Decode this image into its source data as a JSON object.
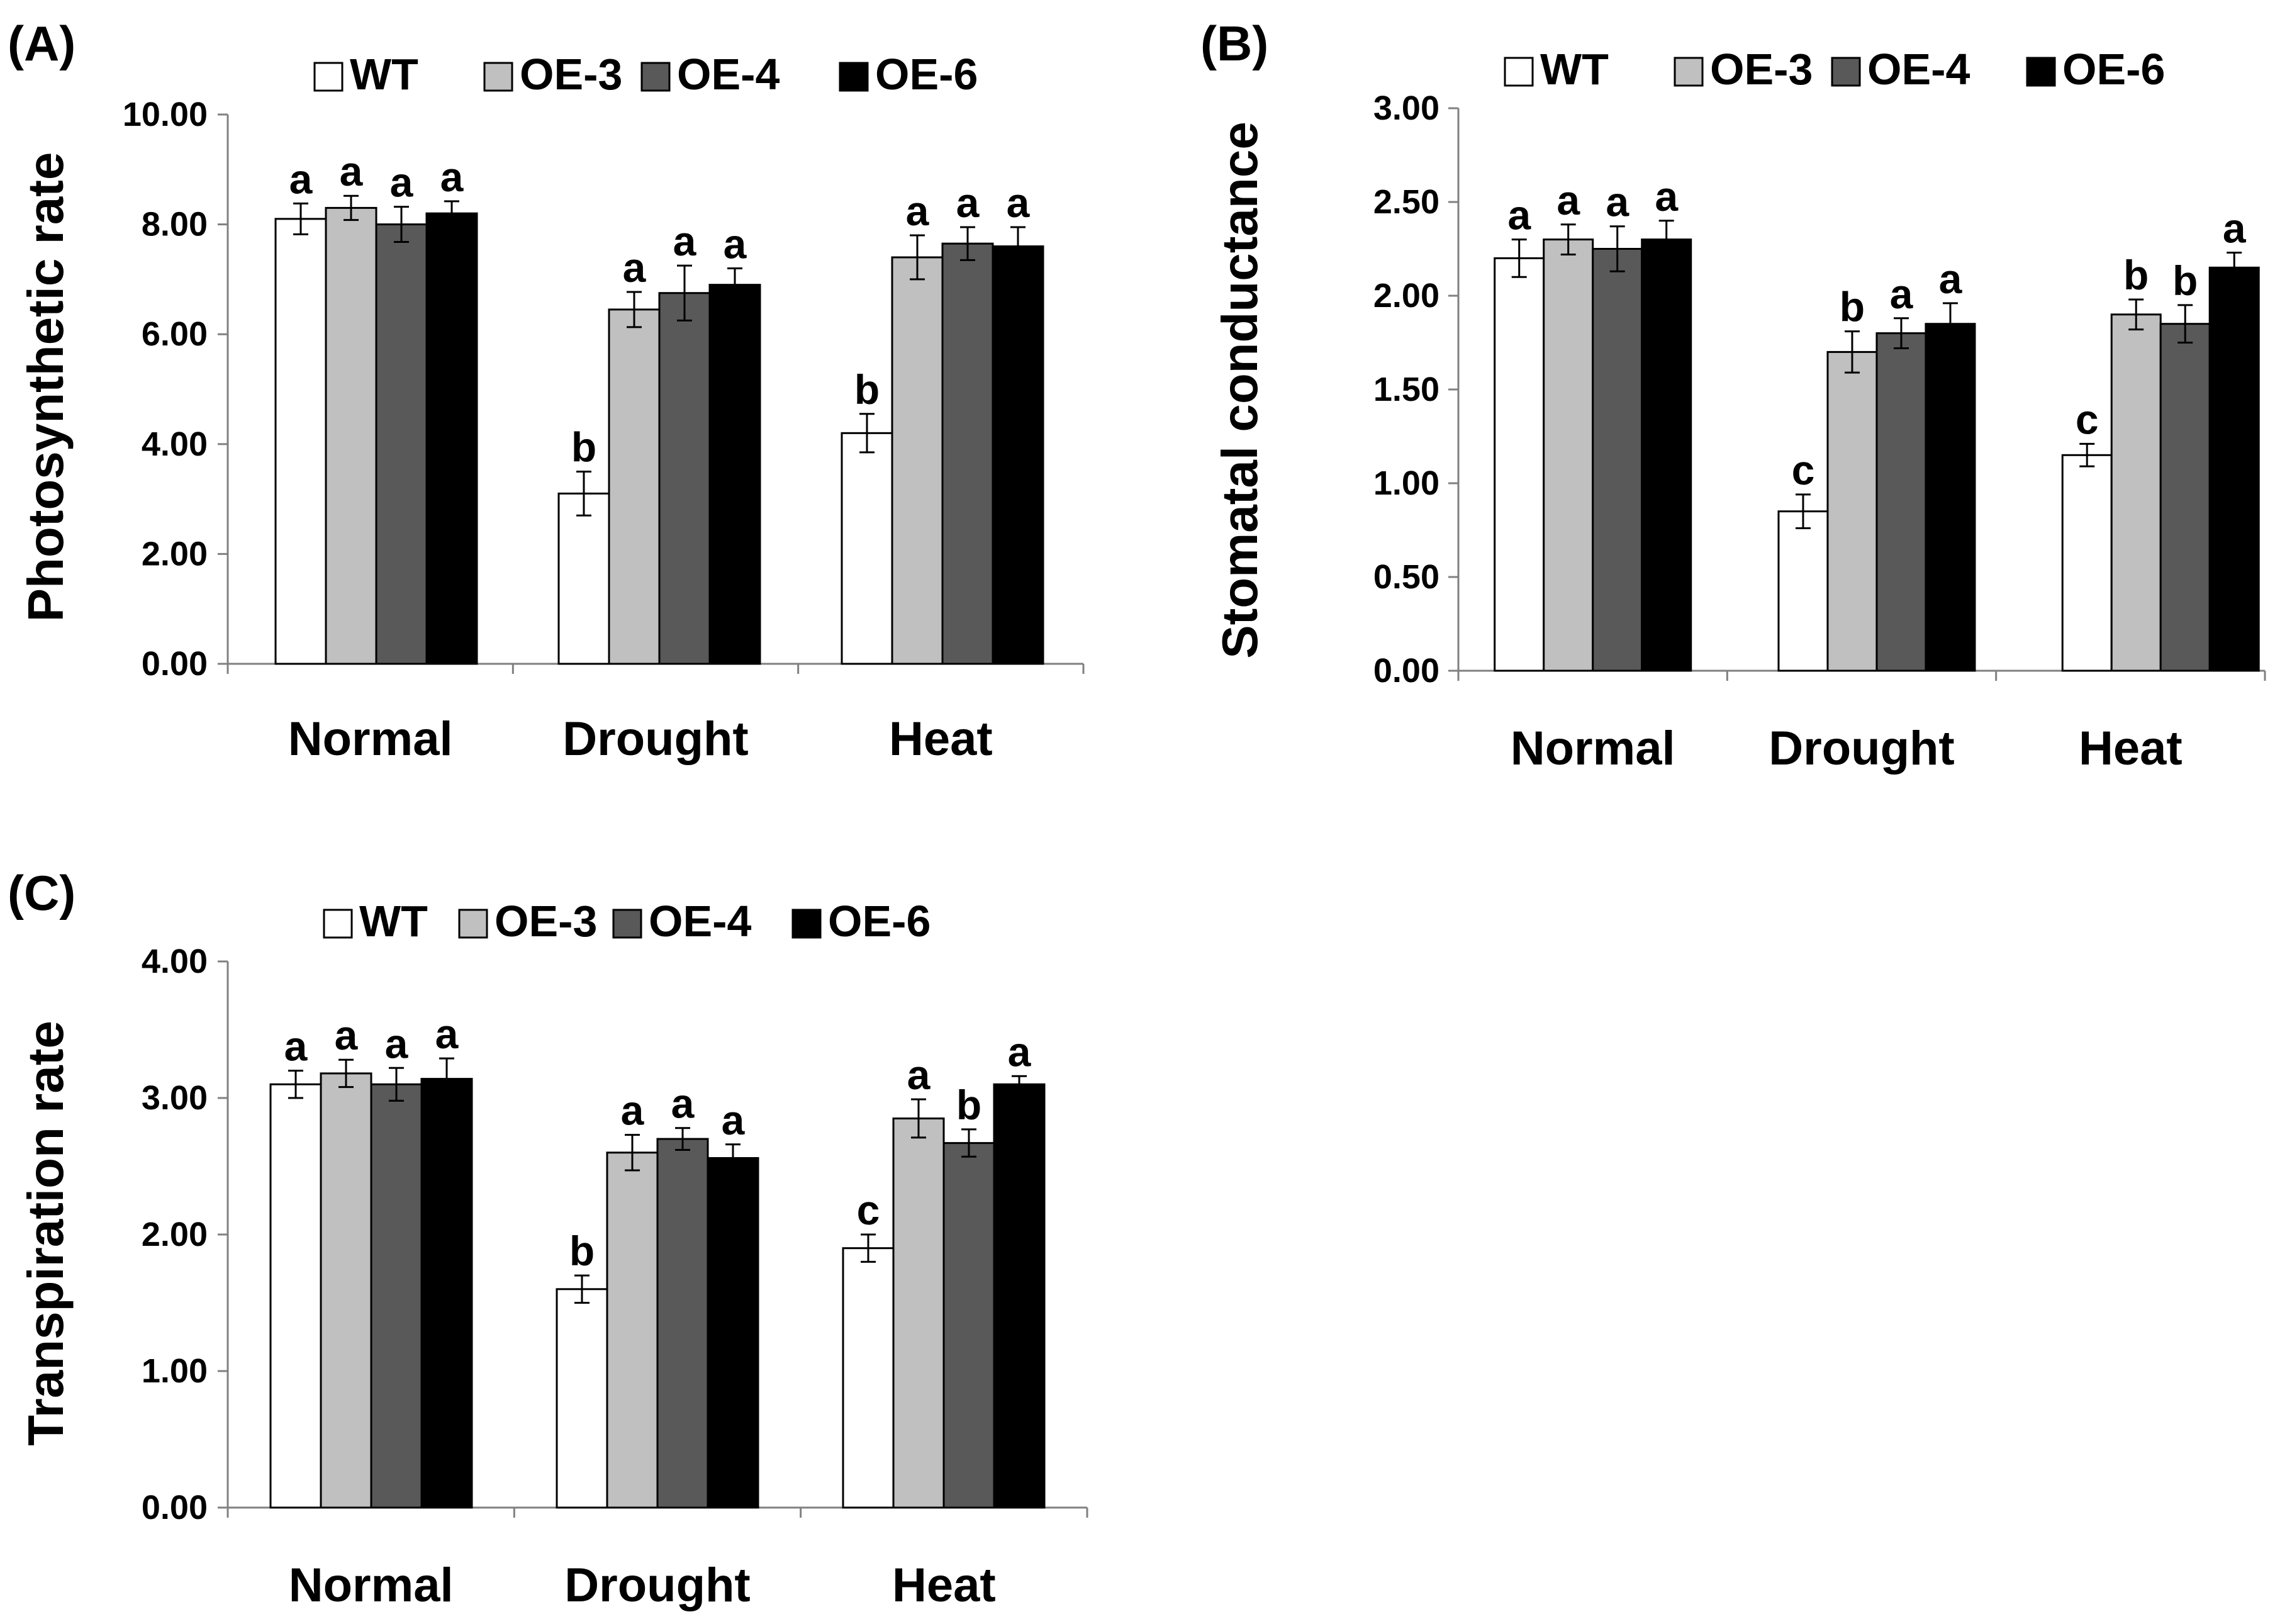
{
  "legend": {
    "series": [
      {
        "name": "WT",
        "color": "#ffffff"
      },
      {
        "name": "OE-3",
        "color": "#c0c0c0"
      },
      {
        "name": "OE-4",
        "color": "#595959"
      },
      {
        "name": "OE-6",
        "color": "#000000"
      }
    ]
  },
  "chart_data": [
    {
      "panel": "(A)",
      "type": "bar",
      "ylabel": "Photosynthetic rate",
      "ylim": [
        0,
        10
      ],
      "yticks": [
        "0.00",
        "2.00",
        "4.00",
        "6.00",
        "8.00",
        "10.00"
      ],
      "categories": [
        "Normal",
        "Drought",
        "Heat"
      ],
      "series": [
        {
          "name": "WT",
          "values": [
            8.1,
            3.1,
            4.2
          ],
          "errors": [
            0.28,
            0.4,
            0.35
          ],
          "letters": [
            "a",
            "b",
            "b"
          ]
        },
        {
          "name": "OE-3",
          "values": [
            8.3,
            6.45,
            7.4
          ],
          "errors": [
            0.22,
            0.32,
            0.4
          ],
          "letters": [
            "a",
            "a",
            "a"
          ]
        },
        {
          "name": "OE-4",
          "values": [
            8.0,
            6.75,
            7.65
          ],
          "errors": [
            0.32,
            0.5,
            0.3
          ],
          "letters": [
            "a",
            "a",
            "a"
          ]
        },
        {
          "name": "OE-6",
          "values": [
            8.2,
            6.9,
            7.6
          ],
          "errors": [
            0.22,
            0.3,
            0.35
          ],
          "letters": [
            "a",
            "a",
            "a"
          ]
        }
      ]
    },
    {
      "panel": "(B)",
      "type": "bar",
      "ylabel": "Stomatal conductance",
      "ylim": [
        0,
        3
      ],
      "yticks": [
        "0.00",
        "0.50",
        "1.00",
        "1.50",
        "2.00",
        "2.50",
        "3.00"
      ],
      "categories": [
        "Normal",
        "Drought",
        "Heat"
      ],
      "series": [
        {
          "name": "WT",
          "values": [
            2.2,
            0.85,
            1.15
          ],
          "errors": [
            0.1,
            0.09,
            0.06
          ],
          "letters": [
            "a",
            "c",
            "c"
          ]
        },
        {
          "name": "OE-3",
          "values": [
            2.3,
            1.7,
            1.9
          ],
          "errors": [
            0.08,
            0.11,
            0.08
          ],
          "letters": [
            "a",
            "b",
            "b"
          ]
        },
        {
          "name": "OE-4",
          "values": [
            2.25,
            1.8,
            1.85
          ],
          "errors": [
            0.12,
            0.08,
            0.1
          ],
          "letters": [
            "a",
            "a",
            "b"
          ]
        },
        {
          "name": "OE-6",
          "values": [
            2.3,
            1.85,
            2.15
          ],
          "errors": [
            0.1,
            0.11,
            0.08
          ],
          "letters": [
            "a",
            "a",
            "a"
          ]
        }
      ]
    },
    {
      "panel": "(C)",
      "type": "bar",
      "ylabel": "Transpiration rate",
      "ylim": [
        0,
        4
      ],
      "yticks": [
        "0.00",
        "1.00",
        "2.00",
        "3.00",
        "4.00"
      ],
      "categories": [
        "Normal",
        "Drought",
        "Heat"
      ],
      "series": [
        {
          "name": "WT",
          "values": [
            3.1,
            1.6,
            1.9
          ],
          "errors": [
            0.1,
            0.1,
            0.1
          ],
          "letters": [
            "a",
            "b",
            "c"
          ]
        },
        {
          "name": "OE-3",
          "values": [
            3.18,
            2.6,
            2.85
          ],
          "errors": [
            0.1,
            0.13,
            0.14
          ],
          "letters": [
            "a",
            "a",
            "a"
          ]
        },
        {
          "name": "OE-4",
          "values": [
            3.1,
            2.7,
            2.67
          ],
          "errors": [
            0.12,
            0.08,
            0.1
          ],
          "letters": [
            "a",
            "a",
            "b"
          ]
        },
        {
          "name": "OE-6",
          "values": [
            3.14,
            2.56,
            3.1
          ],
          "errors": [
            0.15,
            0.1,
            0.06
          ],
          "letters": [
            "a",
            "a",
            "a"
          ]
        }
      ]
    }
  ]
}
